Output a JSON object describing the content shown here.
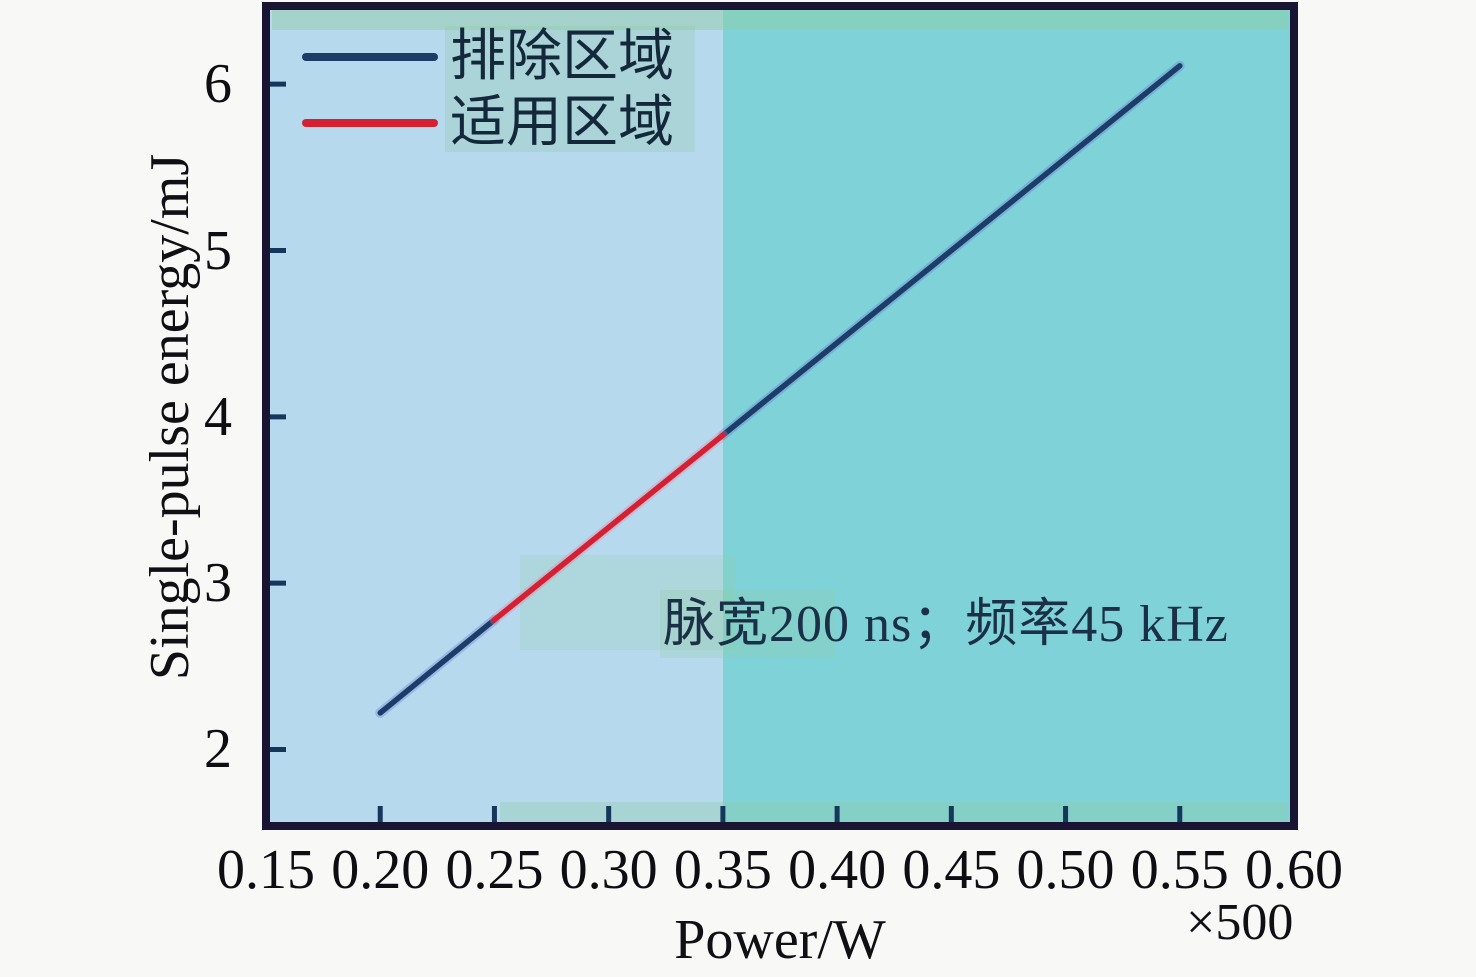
{
  "chart_data": {
    "type": "line",
    "title": "",
    "xlabel": "Power/W",
    "ylabel": "Single-pulse energy/mJ",
    "x_scale_note": "×500",
    "annotation": "脉宽200 ns；频率45 kHz",
    "xlim": [
      0.15,
      0.6
    ],
    "ylim": [
      1.54,
      6.47
    ],
    "grid": false,
    "legend_position": "top-left",
    "x_ticks": {
      "values": [
        0.15,
        0.2,
        0.25,
        0.3,
        0.35,
        0.4,
        0.45,
        0.5,
        0.55,
        0.6
      ],
      "labels": [
        "0.15",
        "0.20",
        "0.25",
        "0.30",
        "0.35",
        "0.40",
        "0.45",
        "0.50",
        "0.55",
        "0.60"
      ]
    },
    "y_ticks": {
      "values": [
        2,
        3,
        4,
        5,
        6
      ],
      "labels": [
        "2",
        "3",
        "4",
        "5",
        "6"
      ]
    },
    "background_regions": [
      {
        "name": "left-band",
        "x_from": 0.15,
        "x_to": 0.35,
        "color": "#b7d9ee"
      },
      {
        "name": "right-band",
        "x_from": 0.35,
        "x_to": 0.6,
        "color": "#7fd3d8"
      }
    ],
    "series": [
      {
        "name": "排除区域",
        "color": "#1d3c68",
        "halo": "#5f6fd2",
        "segments": [
          [
            [
              0.2,
              2.22
            ],
            [
              0.25,
              2.78
            ]
          ],
          [
            [
              0.35,
              3.89
            ],
            [
              0.55,
              6.11
            ]
          ]
        ]
      },
      {
        "name": "适用区域",
        "color": "#d42031",
        "halo": "#e87a9e",
        "segments": [
          [
            [
              0.25,
              2.78
            ],
            [
              0.35,
              3.89
            ]
          ]
        ]
      }
    ],
    "axis_color": "#1a1433",
    "tick_color": "#16365c"
  }
}
